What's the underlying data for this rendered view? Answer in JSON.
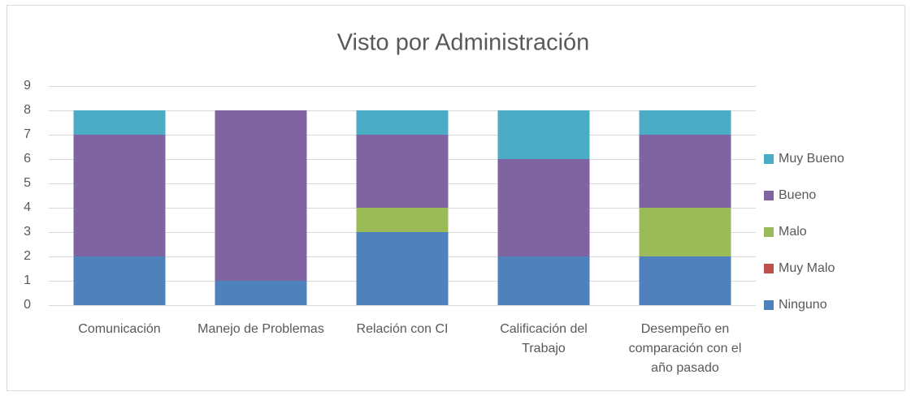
{
  "chart_data": {
    "type": "stacked_bar",
    "title": "Visto por Administración",
    "categories": [
      "Comunicación",
      "Manejo de Problemas",
      "Relación con CI",
      "Calificación del Trabajo",
      "Desempeño en comparación con el año pasado"
    ],
    "series": [
      {
        "name": "Ninguno",
        "color": "#4f81bd",
        "values": [
          2,
          1,
          3,
          2,
          2
        ]
      },
      {
        "name": "Muy Malo",
        "color": "#c0504d",
        "values": [
          0,
          0,
          0,
          0,
          0
        ]
      },
      {
        "name": "Malo",
        "color": "#9bbb59",
        "values": [
          0,
          0,
          1,
          0,
          2
        ]
      },
      {
        "name": "Bueno",
        "color": "#8064a2",
        "values": [
          5,
          7,
          3,
          4,
          3
        ]
      },
      {
        "name": "Muy Bueno",
        "color": "#4bacc6",
        "values": [
          1,
          0,
          1,
          2,
          1
        ]
      }
    ],
    "ylim": [
      0,
      9
    ],
    "yticks": [
      0,
      1,
      2,
      3,
      4,
      5,
      6,
      7,
      8,
      9
    ],
    "grid": true,
    "legend": "right"
  }
}
